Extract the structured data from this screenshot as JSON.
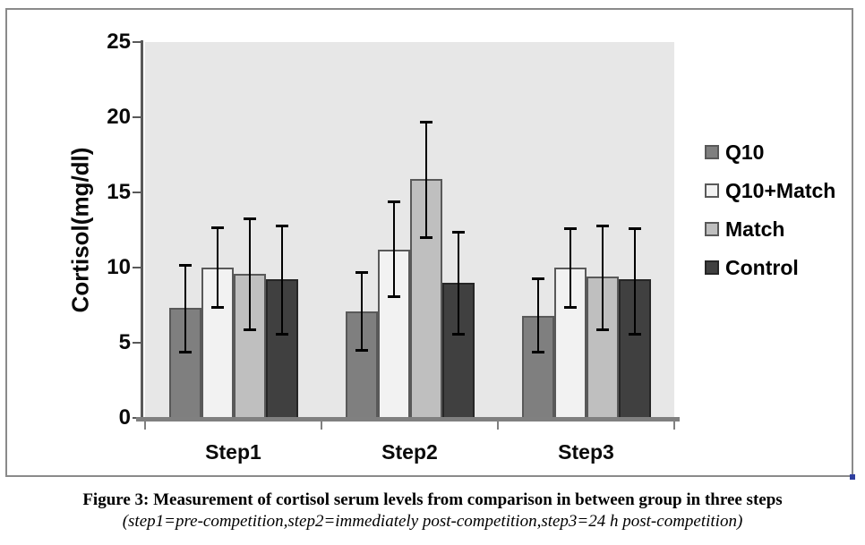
{
  "figure": {
    "caption_line1": "Figure 3: Measurement of cortisol serum levels from comparison in between group in three steps",
    "caption_line2": "(step1=pre-competition,step2=immediately post-competition,step3=24 h post-competition)",
    "border_color": "#8a8a8a",
    "selection_handle_color": "#2f3f9f"
  },
  "chart_data": {
    "type": "bar",
    "title": "",
    "xlabel": "",
    "ylabel": "Cortisol(mg/dl)",
    "ylim": [
      0,
      25
    ],
    "y_ticks": [
      0,
      5,
      10,
      15,
      20,
      25
    ],
    "categories": [
      "Step1",
      "Step2",
      "Step3"
    ],
    "grid": false,
    "legend_position": "right",
    "plot_bg": "#e7e7e7",
    "error_color": "#000000",
    "series": [
      {
        "name": "Q10",
        "color": "#7f7f7f",
        "border": "#595959",
        "values": [
          7.3,
          7.1,
          6.8
        ],
        "error_low": [
          4.4,
          4.5,
          4.4
        ],
        "error_high": [
          10.2,
          9.7,
          9.3
        ]
      },
      {
        "name": "Q10+Match",
        "color": "#f2f2f2",
        "border": "#595959",
        "values": [
          10.0,
          11.2,
          10.0
        ],
        "error_low": [
          7.4,
          8.1,
          7.4
        ],
        "error_high": [
          12.7,
          14.4,
          12.6
        ]
      },
      {
        "name": "Match",
        "color": "#bfbfbf",
        "border": "#595959",
        "values": [
          9.6,
          15.9,
          9.4
        ],
        "error_low": [
          5.9,
          12.0,
          5.9
        ],
        "error_high": [
          13.3,
          19.7,
          12.8
        ]
      },
      {
        "name": "Control",
        "color": "#404040",
        "border": "#262626",
        "values": [
          9.2,
          9.0,
          9.2
        ],
        "error_low": [
          5.6,
          5.6,
          5.6
        ],
        "error_high": [
          12.8,
          12.4,
          12.6
        ]
      }
    ]
  }
}
